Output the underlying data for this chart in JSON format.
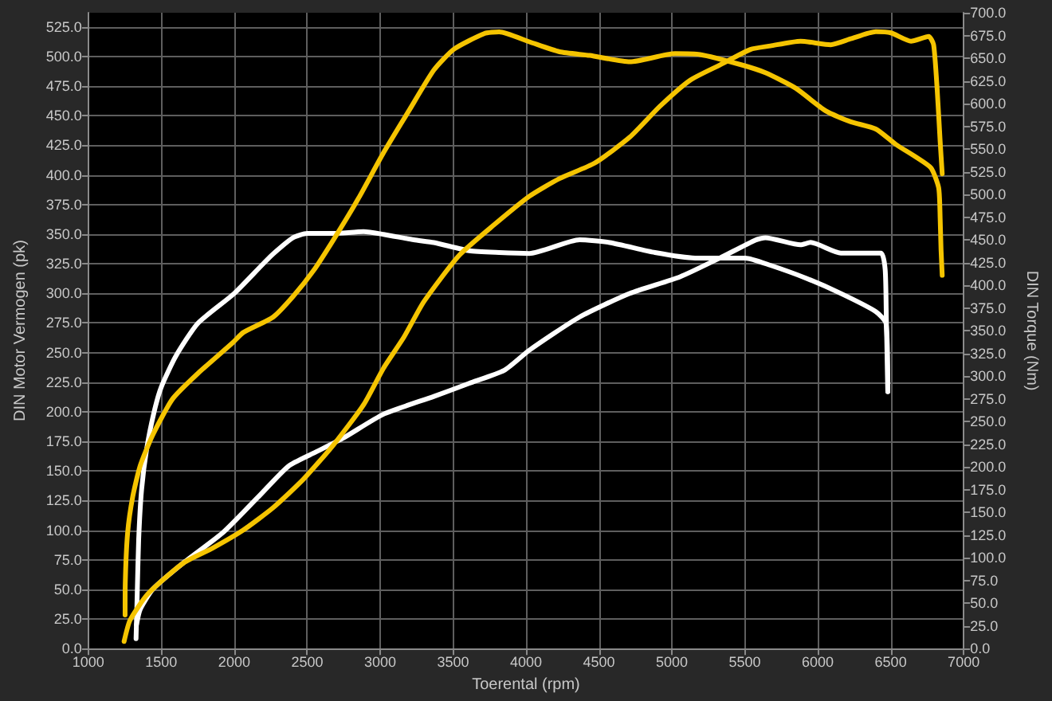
{
  "chart_data": {
    "type": "line",
    "xlabel": "Toerental (rpm)",
    "ylabel": "DIN Motor Vermogen (pk)",
    "y2label": "DIN Torque (Nm)",
    "xlim": [
      1000,
      7000
    ],
    "xticks": [
      1000,
      1500,
      2000,
      2500,
      3000,
      3500,
      4000,
      4500,
      5000,
      5500,
      6000,
      6500,
      7000
    ],
    "ylim": [
      0,
      537
    ],
    "yticks": [
      {
        "value": 0,
        "label": "0.0"
      },
      {
        "value": 25,
        "label": "25.0"
      },
      {
        "value": 50,
        "label": "50.0"
      },
      {
        "value": 75,
        "label": "75.0"
      },
      {
        "value": 100,
        "label": "100.0"
      },
      {
        "value": 125,
        "label": "125.0"
      },
      {
        "value": 150,
        "label": "150.0"
      },
      {
        "value": 175,
        "label": "175.0"
      },
      {
        "value": 200,
        "label": "200.0"
      },
      {
        "value": 225,
        "label": "225.0"
      },
      {
        "value": 250,
        "label": "250.0"
      },
      {
        "value": 275,
        "label": "275.0"
      },
      {
        "value": 300,
        "label": "300.0"
      },
      {
        "value": 325,
        "label": "325.0"
      },
      {
        "value": 350,
        "label": "350.0"
      },
      {
        "value": 375,
        "label": "375.0"
      },
      {
        "value": 400,
        "label": "400.0"
      },
      {
        "value": 425,
        "label": "425.0"
      },
      {
        "value": 450,
        "label": "450.0"
      },
      {
        "value": 475,
        "label": "475.0"
      },
      {
        "value": 500,
        "label": "500.0"
      },
      {
        "value": 525,
        "label": "525.0"
      }
    ],
    "y2lim": [
      0,
      700
    ],
    "y2ticks": [
      {
        "value": 0,
        "label": "0.0"
      },
      {
        "value": 25,
        "label": "25.0"
      },
      {
        "value": 50,
        "label": "50.0"
      },
      {
        "value": 75,
        "label": "75.0"
      },
      {
        "value": 100,
        "label": "100.0"
      },
      {
        "value": 125,
        "label": "125.0"
      },
      {
        "value": 150,
        "label": "150.0"
      },
      {
        "value": 175,
        "label": "175.0"
      },
      {
        "value": 200,
        "label": "200.0"
      },
      {
        "value": 225,
        "label": "225.0"
      },
      {
        "value": 250,
        "label": "250.0"
      },
      {
        "value": 275,
        "label": "275.0"
      },
      {
        "value": 300,
        "label": "300.0"
      },
      {
        "value": 325,
        "label": "325.0"
      },
      {
        "value": 350,
        "label": "350.0"
      },
      {
        "value": 375,
        "label": "375.0"
      },
      {
        "value": 400,
        "label": "400.0"
      },
      {
        "value": 425,
        "label": "425.0"
      },
      {
        "value": 450,
        "label": "450.0"
      },
      {
        "value": 475,
        "label": "475.0"
      },
      {
        "value": 500,
        "label": "500.0"
      },
      {
        "value": 525,
        "label": "525.0"
      },
      {
        "value": 550,
        "label": "550.0"
      },
      {
        "value": 575,
        "label": "575.0"
      },
      {
        "value": 600,
        "label": "600.0"
      },
      {
        "value": 625,
        "label": "625.0"
      },
      {
        "value": 650,
        "label": "650.0"
      },
      {
        "value": 675,
        "label": "675.0"
      },
      {
        "value": 700,
        "label": "700.0"
      }
    ],
    "grid": true,
    "marker": "none",
    "line_style": "solid",
    "series": [
      {
        "color": "#ffffff",
        "axis": "y2",
        "x": [
          1327,
          1335,
          1345,
          1365,
          1400,
          1450,
          1500,
          1600,
          1750,
          2000,
          2250,
          2400,
          2500,
          2680,
          2887,
          3024,
          3231,
          3369,
          3610,
          3816,
          4023,
          4367,
          4574,
          4884,
          5159,
          5503,
          5675,
          5916,
          6158,
          6398,
          6468,
          6480
        ],
        "values": [
          11,
          60,
          120,
          175,
          220,
          260,
          288,
          322,
          358,
          391,
          432,
          452,
          457,
          457,
          459,
          456,
          450,
          447,
          438,
          436,
          435,
          450,
          447,
          436,
          430,
          430,
          422,
          408,
          391,
          371,
          358,
          283
        ]
      },
      {
        "color": "#ffffff",
        "x": [
          1330,
          1355,
          1441,
          1648,
          1923,
          2164,
          2371,
          2543,
          2750,
          3024,
          3369,
          3610,
          3851,
          4023,
          4367,
          4712,
          5056,
          5331,
          5572,
          5641,
          5882,
          5951,
          6158,
          6433,
          6462,
          6470,
          6480
        ],
        "values": [
          20,
          33,
          50,
          72,
          98,
          128,
          154,
          165,
          178,
          198,
          213,
          224,
          235,
          252,
          280,
          300,
          314,
          330,
          345,
          347,
          341,
          343,
          334,
          334,
          320,
          278,
          217
        ]
      },
      {
        "color": "#f5c400",
        "axis": "y2",
        "x": [
          1252,
          1253,
          1269,
          1304,
          1355,
          1441,
          1578,
          1751,
          1991,
          2062,
          2267,
          2405,
          2543,
          2680,
          2853,
          3024,
          3197,
          3369,
          3507,
          3713,
          3816,
          4023,
          4230,
          4436,
          4712,
          5022,
          5193,
          5469,
          5641,
          5848,
          6054,
          6226,
          6398,
          6536,
          6674,
          6777,
          6829,
          6839,
          6845,
          6853
        ],
        "values": [
          37,
          71,
          127,
          167,
          201,
          235,
          275,
          303,
          337,
          348,
          365,
          388,
          416,
          450,
          496,
          546,
          592,
          637,
          660,
          677,
          679,
          668,
          657,
          653,
          646,
          655,
          654,
          643,
          634,
          617,
          592,
          580,
          572,
          555,
          541,
          529,
          507,
          473,
          439,
          411
        ]
      },
      {
        "color": "#f5c400",
        "x": [
          1245,
          1286,
          1407,
          1648,
          1854,
          2061,
          2267,
          2474,
          2680,
          2887,
          3024,
          3163,
          3300,
          3541,
          3782,
          4023,
          4230,
          4470,
          4712,
          4918,
          5125,
          5331,
          5538,
          5675,
          5882,
          6089,
          6226,
          6398,
          6502,
          6639,
          6760,
          6794,
          6819,
          6839,
          6853
        ],
        "values": [
          6,
          24,
          46,
          72,
          85,
          100,
          119,
          143,
          172,
          206,
          237,
          263,
          293,
          332,
          358,
          382,
          397,
          410,
          432,
          458,
          480,
          493,
          506,
          509,
          513,
          510,
          515,
          521,
          520,
          513,
          517,
          510,
          471,
          428,
          401
        ]
      }
    ]
  }
}
